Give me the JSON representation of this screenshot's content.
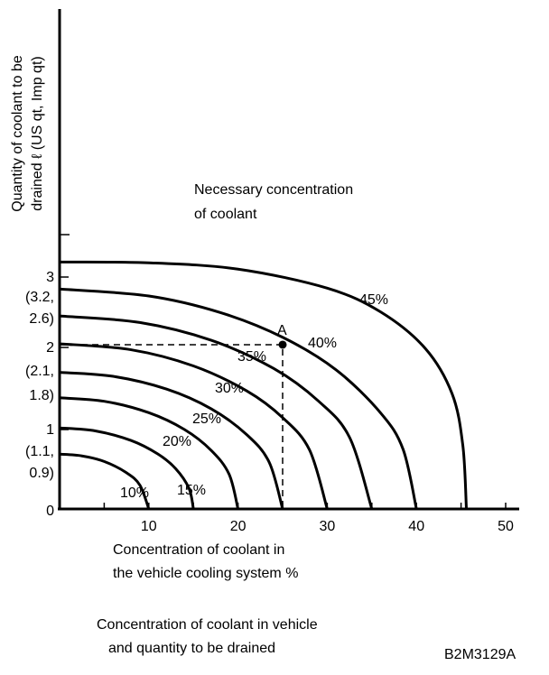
{
  "chart_data": {
    "type": "line",
    "title": "Necessary concentration of coolant",
    "title_lines": [
      "Necessary concentration",
      "of coolant"
    ],
    "xlabel_lines": [
      "Concentration of coolant in",
      "the vehicle cooling system %"
    ],
    "ylabel_lines": [
      "Quantity of coolant to be",
      "drained ℓ (US qt, Imp qt)"
    ],
    "caption_lines": [
      "Concentration of coolant in vehicle",
      "and quantity to be drained"
    ],
    "figure_code": "B2M3129A",
    "xlim": [
      0,
      51
    ],
    "ylim": [
      0,
      6.2
    ],
    "x_ticks": [
      {
        "v": 10,
        "label": "10"
      },
      {
        "v": 20,
        "label": "20"
      },
      {
        "v": 30,
        "label": "30"
      },
      {
        "v": 40,
        "label": "40"
      },
      {
        "v": 50,
        "label": "50"
      }
    ],
    "y_tick_labels": [
      {
        "v": 3,
        "lines": [
          "3",
          "(3.2,",
          "2.6)"
        ]
      },
      {
        "v": 2,
        "lines": [
          "2",
          "(2.1,",
          "1.8)"
        ]
      },
      {
        "v": 1,
        "lines": [
          "1",
          "(1.1,",
          "0.9)"
        ]
      },
      {
        "v": 0,
        "lines": [
          "0"
        ]
      }
    ],
    "series": [
      {
        "name": "10%",
        "points": [
          [
            0,
            0.69
          ],
          [
            2.5,
            0.668
          ],
          [
            5,
            0.598
          ],
          [
            7.5,
            0.456
          ],
          [
            9,
            0.3
          ],
          [
            10,
            0
          ]
        ]
      },
      {
        "name": "15%",
        "points": [
          [
            0,
            1.02
          ],
          [
            4,
            0.983
          ],
          [
            8,
            0.863
          ],
          [
            11,
            0.693
          ],
          [
            13,
            0.509
          ],
          [
            14.5,
            0.261
          ],
          [
            15,
            0
          ]
        ]
      },
      {
        "name": "20%",
        "points": [
          [
            0,
            1.4
          ],
          [
            5,
            1.356
          ],
          [
            10,
            1.212
          ],
          [
            14,
            1.0
          ],
          [
            17,
            0.737
          ],
          [
            19,
            0.437
          ],
          [
            20,
            0
          ]
        ]
      },
      {
        "name": "25%",
        "points": [
          [
            0,
            1.72
          ],
          [
            6,
            1.67
          ],
          [
            12,
            1.509
          ],
          [
            17,
            1.261
          ],
          [
            21,
            0.933
          ],
          [
            23.5,
            0.587
          ],
          [
            25,
            0
          ]
        ]
      },
      {
        "name": "30%",
        "points": [
          [
            0,
            2.08
          ],
          [
            8,
            2.005
          ],
          [
            15,
            1.801
          ],
          [
            21,
            1.485
          ],
          [
            25,
            1.15
          ],
          [
            28,
            0.747
          ],
          [
            30,
            0
          ]
        ]
      },
      {
        "name": "35%",
        "points": [
          [
            0,
            2.43
          ],
          [
            9,
            2.348
          ],
          [
            17,
            2.124
          ],
          [
            24,
            1.769
          ],
          [
            29,
            1.36
          ],
          [
            32.5,
            0.902
          ],
          [
            35,
            0
          ]
        ]
      },
      {
        "name": "40%",
        "points": [
          [
            0,
            2.77
          ],
          [
            10,
            2.682
          ],
          [
            18,
            2.474
          ],
          [
            25,
            2.162
          ],
          [
            31,
            1.751
          ],
          [
            36,
            1.207
          ],
          [
            38.5,
            0.752
          ],
          [
            40,
            0
          ]
        ]
      },
      {
        "name": "45%",
        "points": [
          [
            0,
            3.11
          ],
          [
            10,
            3.1
          ],
          [
            20,
            3.02
          ],
          [
            30,
            2.78
          ],
          [
            36,
            2.48
          ],
          [
            41,
            2.02
          ],
          [
            44,
            1.45
          ],
          [
            45.2,
            0.8
          ],
          [
            45.6,
            0
          ]
        ]
      }
    ],
    "point_A": {
      "label": "A",
      "x": 25,
      "y": 2.08
    }
  }
}
